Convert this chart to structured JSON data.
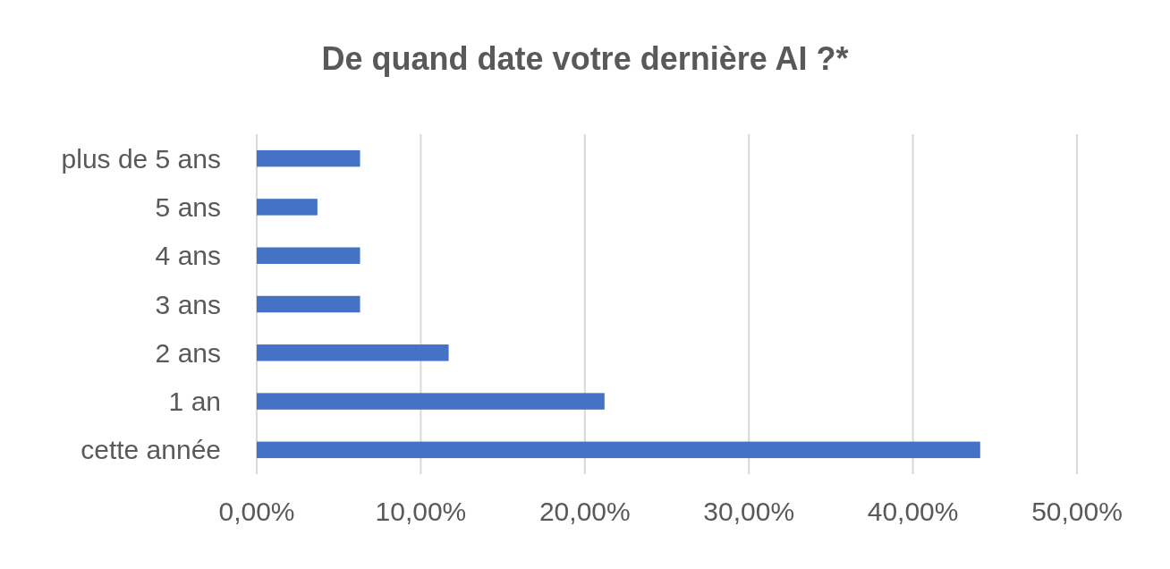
{
  "chart_data": {
    "type": "bar",
    "orientation": "horizontal",
    "title": "De quand date votre dernière AI ?*",
    "categories": [
      "plus de 5 ans",
      "5 ans",
      "4 ans",
      "3 ans",
      "2 ans",
      "1 an",
      "cette année"
    ],
    "values": [
      6.3,
      3.7,
      6.3,
      6.3,
      11.7,
      21.2,
      44.1
    ],
    "color": "#4472c4",
    "xlim": [
      0,
      50
    ],
    "xticks": [
      {
        "value": 0,
        "label": "0,00%"
      },
      {
        "value": 10,
        "label": "10,00%"
      },
      {
        "value": 20,
        "label": "20,00%"
      },
      {
        "value": 30,
        "label": "30,00%"
      },
      {
        "value": 40,
        "label": "40,00%"
      },
      {
        "value": 50,
        "label": "50,00%"
      }
    ],
    "grid": "x"
  }
}
